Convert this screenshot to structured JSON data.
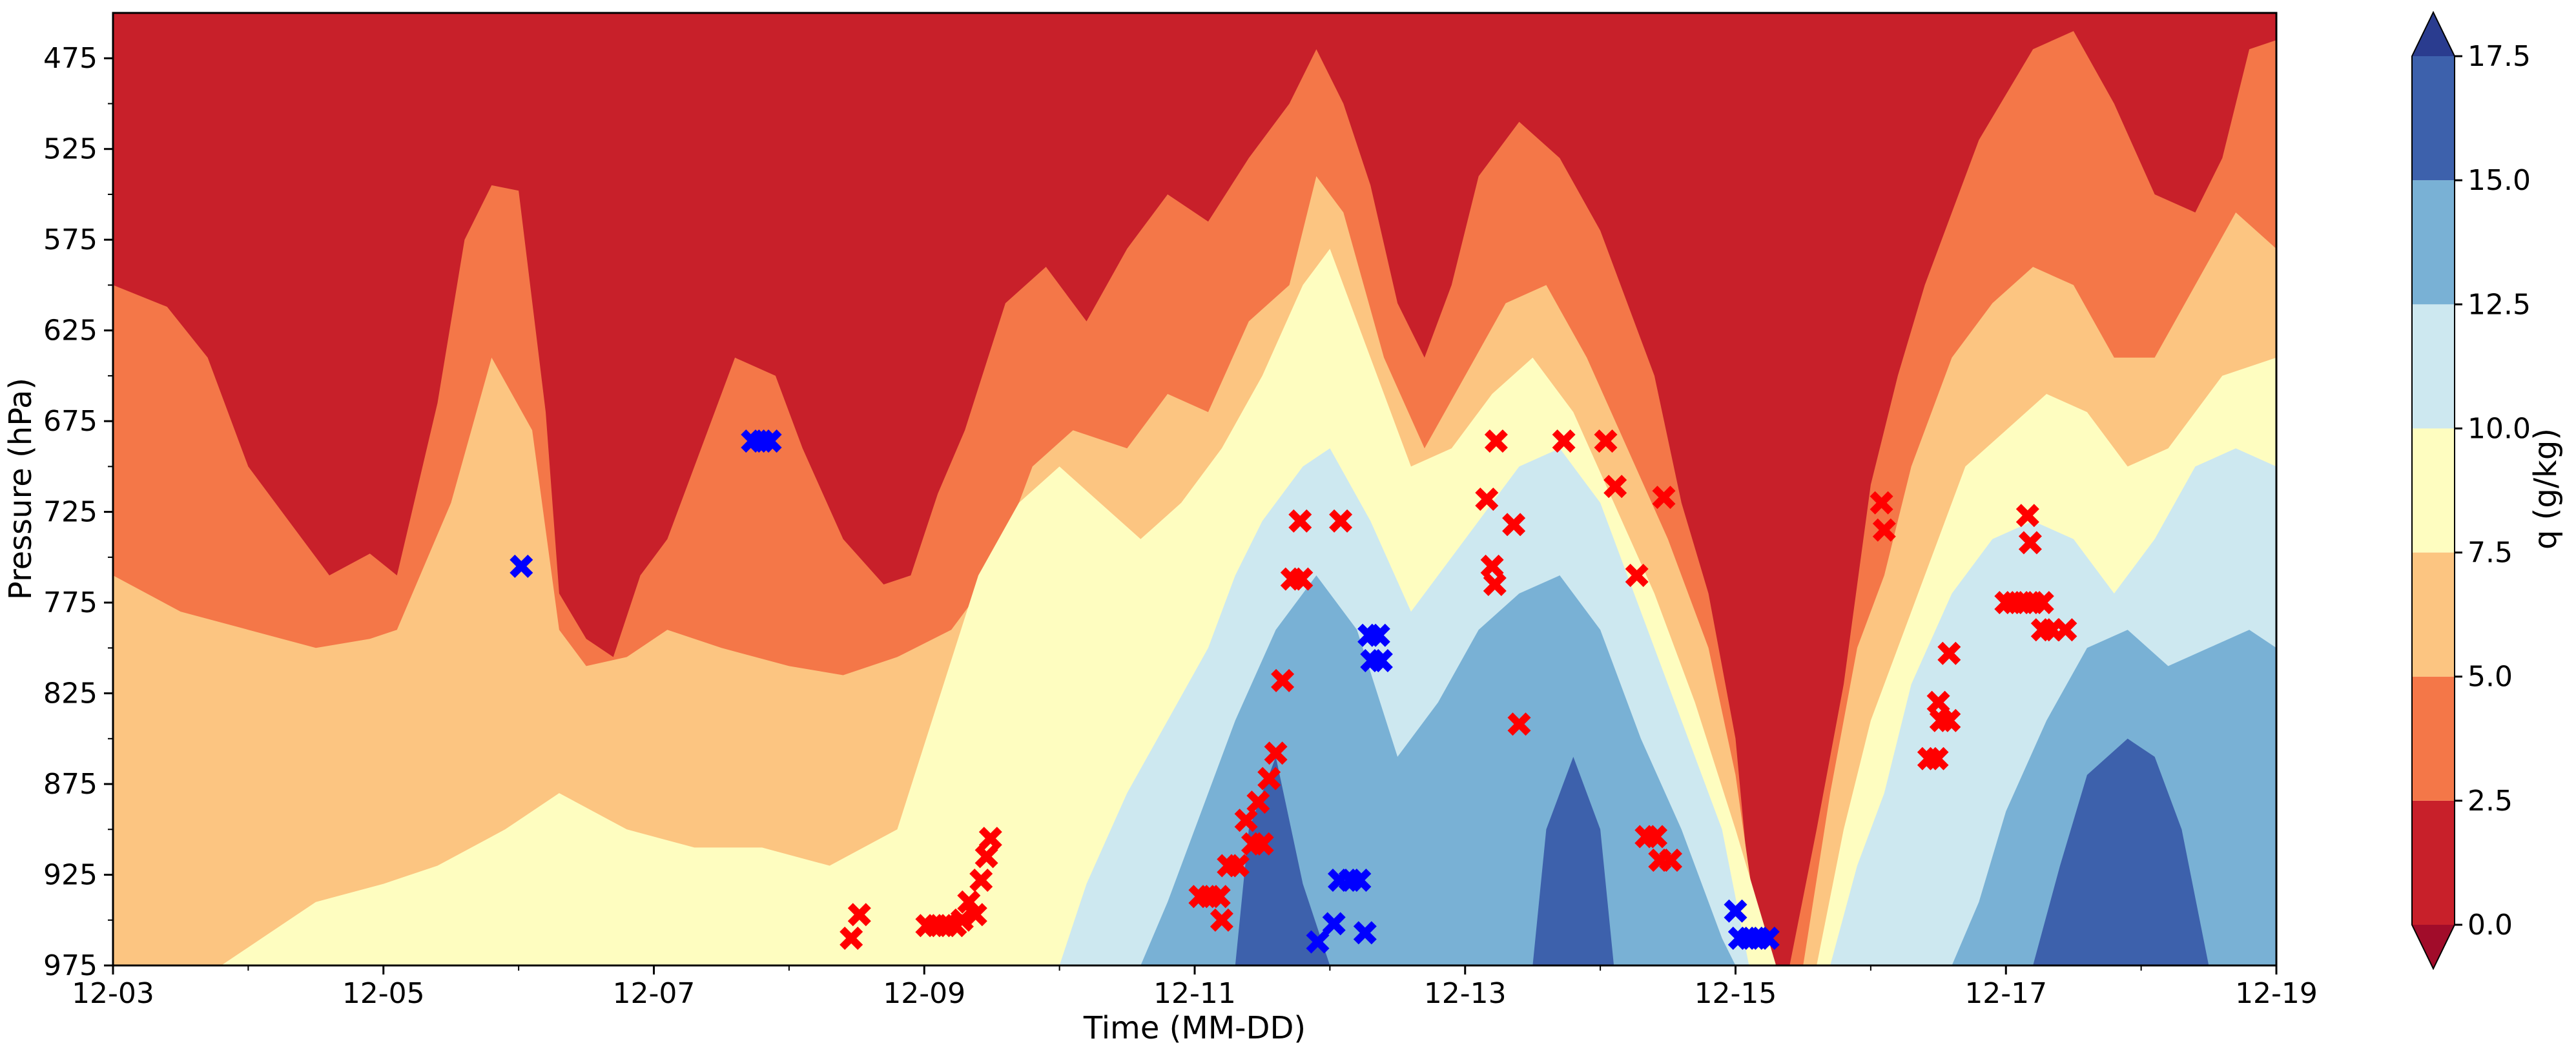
{
  "chart_data": {
    "type": "heatmap",
    "title": "",
    "xlabel": "Time (MM-DD)",
    "ylabel": "Pressure (hPa)",
    "x_range": [
      "12-03",
      "12-19"
    ],
    "x_ticks": [
      "12-03",
      "12-05",
      "12-07",
      "12-09",
      "12-11",
      "12-13",
      "12-15",
      "12-17",
      "12-19"
    ],
    "ylim": [
      975,
      450
    ],
    "y_ticks": [
      475,
      525,
      575,
      625,
      675,
      725,
      775,
      825,
      875,
      925,
      975
    ],
    "colorbar": {
      "label": "q (g/kg)",
      "levels": [
        0.0,
        2.5,
        5.0,
        7.5,
        10.0,
        12.5,
        15.0,
        17.5
      ],
      "tick_labels": [
        "0.0",
        "2.5",
        "5.0",
        "7.5",
        "10.0",
        "12.5",
        "15.0",
        "17.5"
      ],
      "colors": [
        "#c8202a",
        "#f47748",
        "#fcc581",
        "#fefdc0",
        "#cde8f0",
        "#79b1d5",
        "#3d61ac"
      ],
      "under_color": "#a10c2a",
      "over_color": "#2a3c8f",
      "extend": "both"
    },
    "marker_series": [
      {
        "color": "#ff0000",
        "marker": "x",
        "points": [
          {
            "x": 5.46,
            "y": 960
          },
          {
            "x": 5.52,
            "y": 947
          },
          {
            "x": 6.02,
            "y": 953
          },
          {
            "x": 6.09,
            "y": 953
          },
          {
            "x": 6.16,
            "y": 953
          },
          {
            "x": 6.23,
            "y": 953
          },
          {
            "x": 6.28,
            "y": 950
          },
          {
            "x": 6.33,
            "y": 940
          },
          {
            "x": 6.38,
            "y": 947
          },
          {
            "x": 6.42,
            "y": 928
          },
          {
            "x": 6.46,
            "y": 915
          },
          {
            "x": 6.49,
            "y": 905
          },
          {
            "x": 8.04,
            "y": 937
          },
          {
            "x": 8.11,
            "y": 937
          },
          {
            "x": 8.18,
            "y": 937
          },
          {
            "x": 8.2,
            "y": 950
          },
          {
            "x": 8.25,
            "y": 920
          },
          {
            "x": 8.32,
            "y": 920
          },
          {
            "x": 8.38,
            "y": 895
          },
          {
            "x": 8.43,
            "y": 908
          },
          {
            "x": 8.47,
            "y": 885
          },
          {
            "x": 8.5,
            "y": 908
          },
          {
            "x": 8.55,
            "y": 872
          },
          {
            "x": 8.6,
            "y": 858
          },
          {
            "x": 8.65,
            "y": 818
          },
          {
            "x": 8.72,
            "y": 762
          },
          {
            "x": 8.79,
            "y": 762
          },
          {
            "x": 8.78,
            "y": 730
          },
          {
            "x": 9.08,
            "y": 730
          },
          {
            "x": 10.16,
            "y": 718
          },
          {
            "x": 10.23,
            "y": 686
          },
          {
            "x": 10.2,
            "y": 755
          },
          {
            "x": 10.22,
            "y": 765
          },
          {
            "x": 10.36,
            "y": 732
          },
          {
            "x": 10.4,
            "y": 842
          },
          {
            "x": 10.73,
            "y": 686
          },
          {
            "x": 11.04,
            "y": 686
          },
          {
            "x": 11.11,
            "y": 711
          },
          {
            "x": 11.27,
            "y": 760
          },
          {
            "x": 11.47,
            "y": 717
          },
          {
            "x": 11.34,
            "y": 904
          },
          {
            "x": 11.41,
            "y": 904
          },
          {
            "x": 11.44,
            "y": 917
          },
          {
            "x": 11.52,
            "y": 917
          },
          {
            "x": 13.08,
            "y": 720
          },
          {
            "x": 13.1,
            "y": 735
          },
          {
            "x": 13.43,
            "y": 861
          },
          {
            "x": 13.49,
            "y": 861
          },
          {
            "x": 13.5,
            "y": 830
          },
          {
            "x": 13.52,
            "y": 840
          },
          {
            "x": 13.58,
            "y": 840
          },
          {
            "x": 13.58,
            "y": 803
          },
          {
            "x": 14.0,
            "y": 775
          },
          {
            "x": 14.06,
            "y": 775
          },
          {
            "x": 14.13,
            "y": 775
          },
          {
            "x": 14.16,
            "y": 727
          },
          {
            "x": 14.18,
            "y": 742
          },
          {
            "x": 14.2,
            "y": 775
          },
          {
            "x": 14.27,
            "y": 775
          },
          {
            "x": 14.27,
            "y": 790
          },
          {
            "x": 14.34,
            "y": 790
          },
          {
            "x": 14.44,
            "y": 790
          }
        ]
      },
      {
        "color": "#0000ff",
        "marker": "x",
        "points": [
          {
            "x": 3.02,
            "y": 755
          },
          {
            "x": 4.73,
            "y": 686
          },
          {
            "x": 4.8,
            "y": 686
          },
          {
            "x": 4.86,
            "y": 686
          },
          {
            "x": 8.91,
            "y": 962
          },
          {
            "x": 9.03,
            "y": 952
          },
          {
            "x": 9.07,
            "y": 928
          },
          {
            "x": 9.15,
            "y": 928
          },
          {
            "x": 9.22,
            "y": 928
          },
          {
            "x": 9.26,
            "y": 957
          },
          {
            "x": 9.29,
            "y": 793
          },
          {
            "x": 9.36,
            "y": 793
          },
          {
            "x": 9.31,
            "y": 807
          },
          {
            "x": 9.38,
            "y": 807
          },
          {
            "x": 12.0,
            "y": 945
          },
          {
            "x": 12.03,
            "y": 960
          },
          {
            "x": 12.1,
            "y": 960
          },
          {
            "x": 12.17,
            "y": 960
          },
          {
            "x": 12.24,
            "y": 960
          }
        ]
      }
    ]
  }
}
